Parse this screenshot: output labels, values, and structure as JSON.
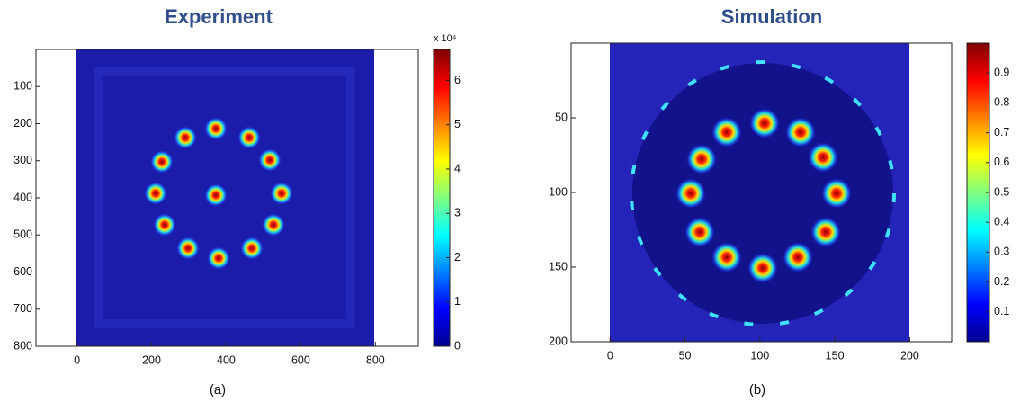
{
  "chart_data": [
    {
      "type": "heatmap",
      "title": "Experiment",
      "caption": "(a)",
      "xlim": [
        -110,
        915
      ],
      "xticks": [
        0,
        200,
        400,
        600,
        800
      ],
      "ylim": [
        0,
        800
      ],
      "yticks": [
        100,
        200,
        300,
        400,
        500,
        600,
        700,
        800
      ],
      "y_reversed": true,
      "clim": [
        0,
        6.7
      ],
      "cticks": [
        0,
        1,
        2,
        3,
        4,
        5,
        6
      ],
      "colorbar_scale_label": "x 10⁴",
      "colormap": "jet"
    },
    {
      "type": "heatmap",
      "title": "Simulation",
      "caption": "(b)",
      "xlim": [
        -26,
        228
      ],
      "xticks": [
        0,
        50,
        100,
        150,
        200
      ],
      "ylim": [
        0,
        200
      ],
      "yticks": [
        50,
        100,
        150,
        200
      ],
      "y_reversed": true,
      "clim": [
        0,
        1
      ],
      "cticks": [
        0.1,
        0.2,
        0.3,
        0.4,
        0.5,
        0.6,
        0.7,
        0.8,
        0.9
      ],
      "colormap": "jet"
    }
  ]
}
